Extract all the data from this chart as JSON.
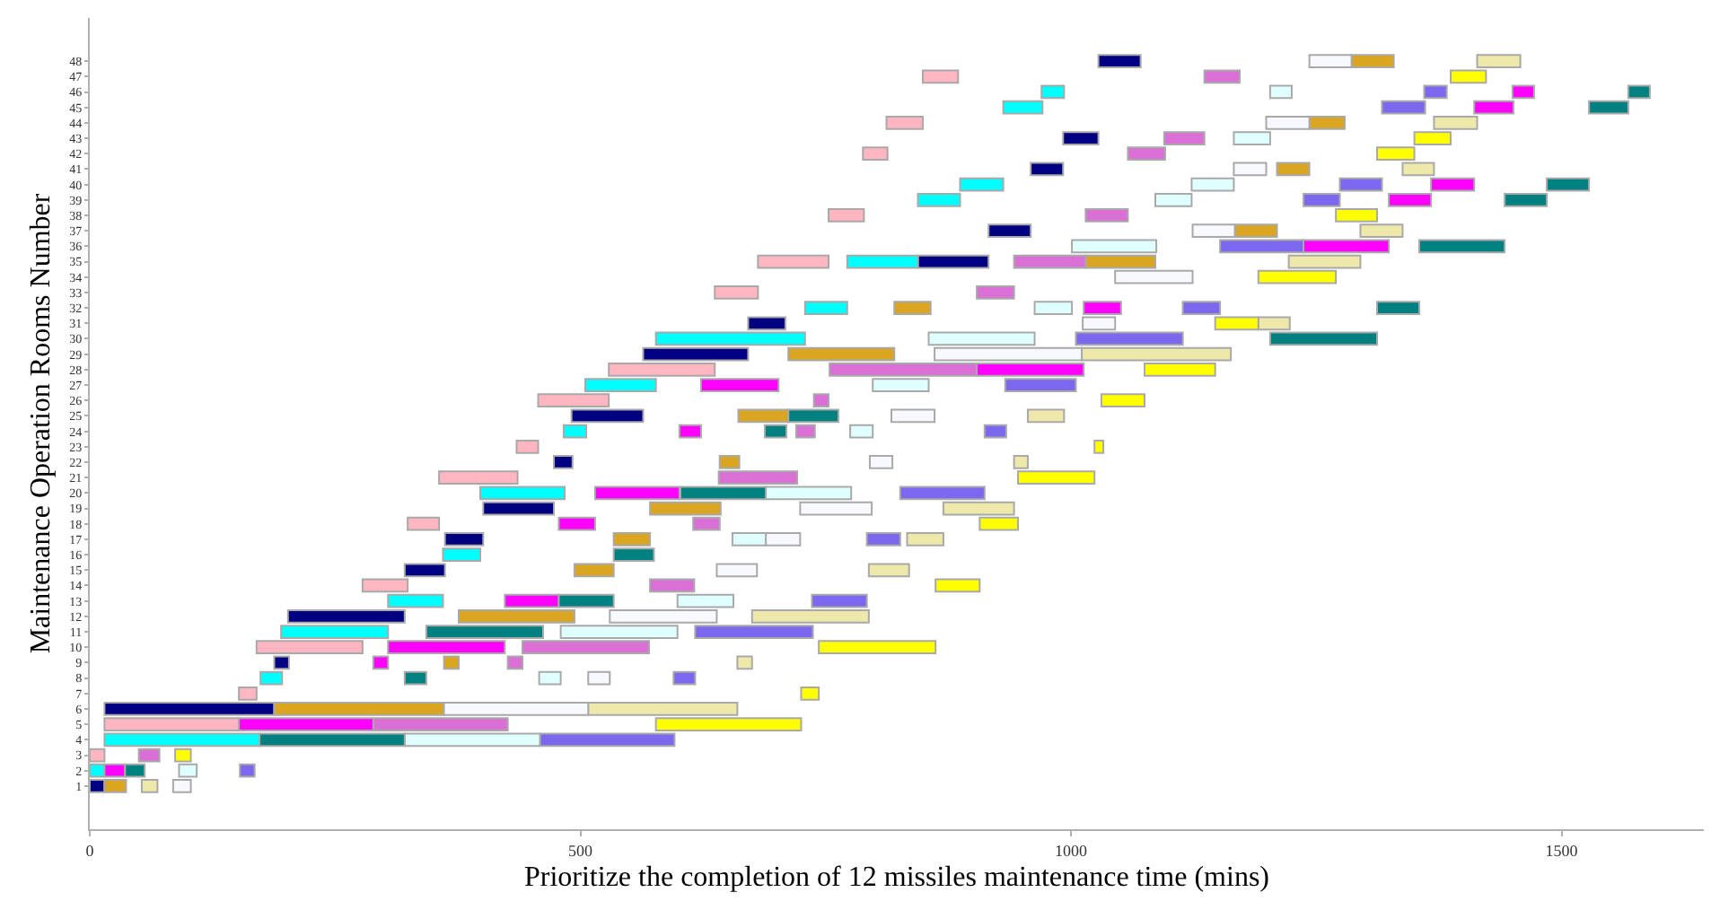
{
  "chart_data": {
    "type": "bar",
    "orientation": "horizontal",
    "xlabel": "Prioritize the completion of 12 missiles maintenance time (mins)",
    "ylabel": "Maintenance Operation Rooms Number",
    "categories": [
      "48",
      "47",
      "46",
      "45",
      "44",
      "43",
      "42",
      "41",
      "40",
      "39",
      "38",
      "37",
      "36",
      "35",
      "34",
      "33",
      "32",
      "31",
      "30",
      "29",
      "28",
      "27",
      "26",
      "25",
      "24",
      "23",
      "22",
      "21",
      "20",
      "19",
      "18",
      "17",
      "16",
      "15",
      "14",
      "13",
      "12",
      "11",
      "10",
      "9",
      "8",
      "7",
      "6",
      "5",
      "4",
      "3",
      "2",
      "1"
    ],
    "xlim": [
      0,
      1645
    ],
    "xticks": [
      0,
      500,
      1000,
      1500
    ],
    "grid": false,
    "series": [
      {
        "color": "#000080",
        "base": [
          1028,
          null,
          null,
          null,
          null,
          992,
          null,
          959,
          null,
          null,
          null,
          916,
          null,
          844,
          null,
          null,
          null,
          671,
          null,
          564,
          null,
          null,
          null,
          491,
          null,
          null,
          473,
          null,
          null,
          401,
          null,
          362,
          null,
          321,
          null,
          null,
          202,
          null,
          null,
          188,
          null,
          null,
          15,
          null,
          null,
          null,
          null,
          0
        ],
        "values": [
          43,
          null,
          null,
          null,
          null,
          36,
          null,
          33,
          null,
          null,
          null,
          43,
          null,
          72,
          null,
          null,
          null,
          38,
          null,
          107,
          null,
          null,
          null,
          73,
          null,
          null,
          19,
          null,
          null,
          72,
          null,
          39,
          null,
          41,
          null,
          null,
          119,
          null,
          null,
          15,
          null,
          null,
          173,
          null,
          null,
          null,
          null,
          15
        ]
      },
      {
        "color": "#daa520",
        "base": [
          1286,
          null,
          null,
          null,
          1243,
          null,
          null,
          1210,
          null,
          null,
          null,
          1167,
          null,
          1015,
          null,
          null,
          820,
          null,
          null,
          712,
          null,
          null,
          null,
          661,
          null,
          null,
          642,
          null,
          null,
          571,
          null,
          534,
          null,
          494,
          null,
          null,
          376,
          null,
          null,
          361,
          null,
          null,
          188,
          null,
          null,
          null,
          null,
          15
        ],
        "values": [
          43,
          null,
          null,
          null,
          36,
          null,
          null,
          33,
          null,
          null,
          null,
          43,
          null,
          71,
          null,
          null,
          37,
          null,
          null,
          108,
          null,
          null,
          null,
          51,
          null,
          null,
          20,
          null,
          null,
          72,
          null,
          37,
          null,
          40,
          null,
          null,
          118,
          null,
          null,
          15,
          null,
          null,
          173,
          null,
          null,
          null,
          null,
          22
        ]
      },
      {
        "color": "#eee8aa",
        "base": [
          1414,
          null,
          null,
          null,
          1370,
          null,
          null,
          1338,
          null,
          null,
          null,
          1295,
          null,
          1222,
          null,
          null,
          null,
          1191,
          null,
          1011,
          null,
          null,
          null,
          956,
          null,
          null,
          942,
          null,
          null,
          870,
          null,
          833,
          null,
          794,
          null,
          null,
          675,
          null,
          null,
          660,
          null,
          null,
          508,
          null,
          null,
          null,
          null,
          53
        ],
        "values": [
          44,
          null,
          null,
          null,
          44,
          null,
          null,
          32,
          null,
          null,
          null,
          43,
          null,
          73,
          null,
          null,
          null,
          32,
          null,
          152,
          null,
          null,
          null,
          37,
          null,
          null,
          14,
          null,
          null,
          72,
          null,
          37,
          null,
          41,
          null,
          null,
          119,
          null,
          null,
          15,
          null,
          null,
          152,
          null,
          null,
          null,
          null,
          16
        ]
      },
      {
        "color": "#f8f8ff",
        "base": [
          1243,
          null,
          null,
          null,
          1199,
          null,
          null,
          1166,
          null,
          null,
          null,
          1124,
          null,
          null,
          1045,
          null,
          null,
          1012,
          null,
          861,
          null,
          null,
          null,
          817,
          null,
          null,
          795,
          null,
          null,
          724,
          null,
          689,
          null,
          639,
          null,
          null,
          530,
          null,
          null,
          null,
          508,
          null,
          361,
          null,
          null,
          null,
          null,
          85
        ],
        "values": [
          43,
          null,
          null,
          null,
          44,
          null,
          null,
          33,
          null,
          null,
          null,
          43,
          null,
          null,
          79,
          null,
          null,
          33,
          null,
          150,
          null,
          null,
          null,
          44,
          null,
          null,
          23,
          null,
          null,
          73,
          null,
          35,
          null,
          41,
          null,
          null,
          109,
          null,
          null,
          null,
          22,
          null,
          147,
          null,
          null,
          null,
          null,
          18
        ]
      },
      {
        "color": "#ffb6c1",
        "base": [
          null,
          849,
          null,
          null,
          812,
          null,
          788,
          null,
          null,
          null,
          753,
          null,
          null,
          681,
          null,
          637,
          null,
          null,
          null,
          null,
          529,
          null,
          457,
          null,
          null,
          435,
          null,
          356,
          null,
          null,
          324,
          null,
          null,
          null,
          278,
          null,
          null,
          null,
          170,
          null,
          null,
          152,
          null,
          15,
          null,
          0,
          null,
          null
        ],
        "values": [
          null,
          36,
          null,
          null,
          37,
          null,
          25,
          null,
          null,
          null,
          36,
          null,
          null,
          72,
          null,
          44,
          null,
          null,
          null,
          null,
          108,
          null,
          72,
          null,
          null,
          22,
          null,
          80,
          null,
          null,
          32,
          null,
          null,
          null,
          46,
          null,
          null,
          null,
          108,
          null,
          null,
          18,
          null,
          137,
          null,
          15,
          null,
          null
        ]
      },
      {
        "color": "#da70d6",
        "base": [
          null,
          1136,
          null,
          null,
          null,
          1095,
          1058,
          null,
          null,
          null,
          1015,
          null,
          null,
          942,
          null,
          904,
          null,
          null,
          null,
          null,
          754,
          null,
          738,
          null,
          720,
          null,
          null,
          641,
          null,
          null,
          615,
          null,
          null,
          null,
          571,
          null,
          null,
          null,
          441,
          426,
          null,
          null,
          null,
          289,
          null,
          50,
          null,
          null
        ],
        "values": [
          null,
          36,
          null,
          null,
          null,
          41,
          38,
          null,
          null,
          null,
          43,
          null,
          null,
          73,
          null,
          38,
          null,
          null,
          null,
          null,
          150,
          null,
          15,
          null,
          19,
          null,
          null,
          80,
          null,
          null,
          27,
          null,
          null,
          null,
          45,
          null,
          null,
          null,
          129,
          15,
          null,
          null,
          null,
          137,
          null,
          21,
          null,
          null
        ]
      },
      {
        "color": "#ffff00",
        "base": [
          null,
          1387,
          null,
          null,
          null,
          1350,
          1312,
          null,
          null,
          null,
          1270,
          null,
          null,
          null,
          1191,
          null,
          null,
          1147,
          null,
          null,
          1075,
          null,
          1031,
          null,
          null,
          1024,
          null,
          946,
          null,
          null,
          907,
          null,
          null,
          null,
          862,
          null,
          null,
          null,
          743,
          null,
          null,
          725,
          null,
          577,
          null,
          87,
          null,
          null
        ],
        "values": [
          null,
          36,
          null,
          null,
          null,
          37,
          38,
          null,
          null,
          null,
          42,
          null,
          null,
          null,
          79,
          null,
          null,
          44,
          null,
          null,
          72,
          null,
          44,
          null,
          null,
          9,
          null,
          78,
          null,
          null,
          39,
          null,
          null,
          null,
          45,
          null,
          null,
          null,
          119,
          null,
          null,
          18,
          null,
          148,
          null,
          16,
          null,
          null
        ]
      },
      {
        "color": "#00ffff",
        "base": [
          null,
          null,
          970,
          931,
          null,
          null,
          null,
          null,
          887,
          844,
          null,
          null,
          null,
          772,
          null,
          null,
          729,
          null,
          577,
          null,
          null,
          505,
          null,
          null,
          483,
          null,
          null,
          null,
          398,
          null,
          null,
          null,
          360,
          null,
          null,
          304,
          null,
          195,
          null,
          null,
          174,
          null,
          null,
          null,
          15,
          null,
          0,
          null
        ],
        "values": [
          null,
          null,
          23,
          40,
          null,
          null,
          null,
          null,
          44,
          43,
          null,
          null,
          null,
          72,
          null,
          null,
          43,
          null,
          152,
          null,
          null,
          72,
          null,
          null,
          23,
          null,
          null,
          null,
          86,
          null,
          null,
          null,
          38,
          null,
          null,
          56,
          null,
          109,
          null,
          null,
          22,
          null,
          null,
          null,
          158,
          null,
          15,
          null
        ]
      },
      {
        "color": "#e0ffff",
        "base": [
          null,
          null,
          1203,
          null,
          null,
          1166,
          null,
          null,
          1123,
          1086,
          null,
          null,
          1001,
          null,
          null,
          null,
          963,
          null,
          855,
          null,
          null,
          798,
          null,
          null,
          775,
          null,
          null,
          null,
          689,
          null,
          null,
          655,
          null,
          null,
          null,
          599,
          null,
          480,
          null,
          null,
          458,
          null,
          null,
          null,
          321,
          null,
          91,
          null
        ],
        "values": [
          null,
          null,
          22,
          null,
          null,
          37,
          null,
          null,
          43,
          37,
          null,
          null,
          86,
          null,
          null,
          null,
          38,
          null,
          108,
          null,
          null,
          57,
          null,
          null,
          23,
          null,
          null,
          null,
          87,
          null,
          null,
          34,
          null,
          null,
          null,
          57,
          null,
          119,
          null,
          null,
          22,
          null,
          null,
          null,
          138,
          null,
          18,
          null
        ]
      },
      {
        "color": "#7b68ee",
        "base": [
          null,
          null,
          1360,
          1317,
          null,
          null,
          null,
          null,
          1274,
          1237,
          null,
          null,
          1152,
          null,
          null,
          null,
          1114,
          null,
          1005,
          null,
          null,
          933,
          null,
          null,
          912,
          null,
          null,
          null,
          826,
          null,
          null,
          792,
          null,
          null,
          null,
          736,
          null,
          617,
          null,
          null,
          595,
          null,
          null,
          null,
          459,
          null,
          153,
          null
        ],
        "values": [
          null,
          null,
          23,
          44,
          null,
          null,
          null,
          null,
          43,
          37,
          null,
          null,
          85,
          null,
          null,
          null,
          38,
          null,
          109,
          null,
          null,
          72,
          null,
          null,
          22,
          null,
          null,
          null,
          86,
          null,
          null,
          34,
          null,
          null,
          null,
          56,
          null,
          120,
          null,
          null,
          22,
          null,
          null,
          null,
          137,
          null,
          15,
          null
        ]
      },
      {
        "color": "#ff00ff",
        "base": [
          null,
          null,
          1450,
          1411,
          null,
          null,
          null,
          null,
          1367,
          1324,
          null,
          null,
          1237,
          null,
          null,
          null,
          1013,
          null,
          null,
          null,
          904,
          623,
          null,
          null,
          601,
          null,
          null,
          null,
          515,
          null,
          478,
          null,
          null,
          null,
          null,
          423,
          null,
          null,
          304,
          289,
          null,
          null,
          null,
          152,
          null,
          null,
          15,
          null
        ],
        "values": [
          null,
          null,
          22,
          40,
          null,
          null,
          null,
          null,
          44,
          43,
          null,
          null,
          87,
          null,
          null,
          null,
          38,
          null,
          null,
          null,
          109,
          79,
          null,
          null,
          22,
          null,
          null,
          null,
          86,
          null,
          37,
          null,
          null,
          null,
          null,
          55,
          null,
          null,
          119,
          15,
          null,
          null,
          null,
          137,
          null,
          null,
          21,
          null
        ]
      },
      {
        "color": "#008080",
        "base": [
          null,
          null,
          1568,
          1528,
          null,
          null,
          null,
          null,
          1485,
          1442,
          null,
          null,
          1355,
          null,
          null,
          null,
          1312,
          null,
          1203,
          null,
          null,
          null,
          null,
          712,
          688,
          null,
          null,
          null,
          602,
          null,
          null,
          null,
          534,
          null,
          null,
          478,
          null,
          343,
          null,
          null,
          321,
          null,
          null,
          null,
          173,
          null,
          36,
          null
        ],
        "values": [
          null,
          null,
          22,
          40,
          null,
          null,
          null,
          null,
          43,
          43,
          null,
          null,
          87,
          null,
          null,
          null,
          43,
          null,
          109,
          null,
          null,
          null,
          null,
          51,
          22,
          null,
          null,
          null,
          87,
          null,
          null,
          null,
          41,
          null,
          null,
          56,
          null,
          119,
          null,
          null,
          22,
          null,
          null,
          null,
          148,
          null,
          20,
          null
        ]
      }
    ]
  }
}
